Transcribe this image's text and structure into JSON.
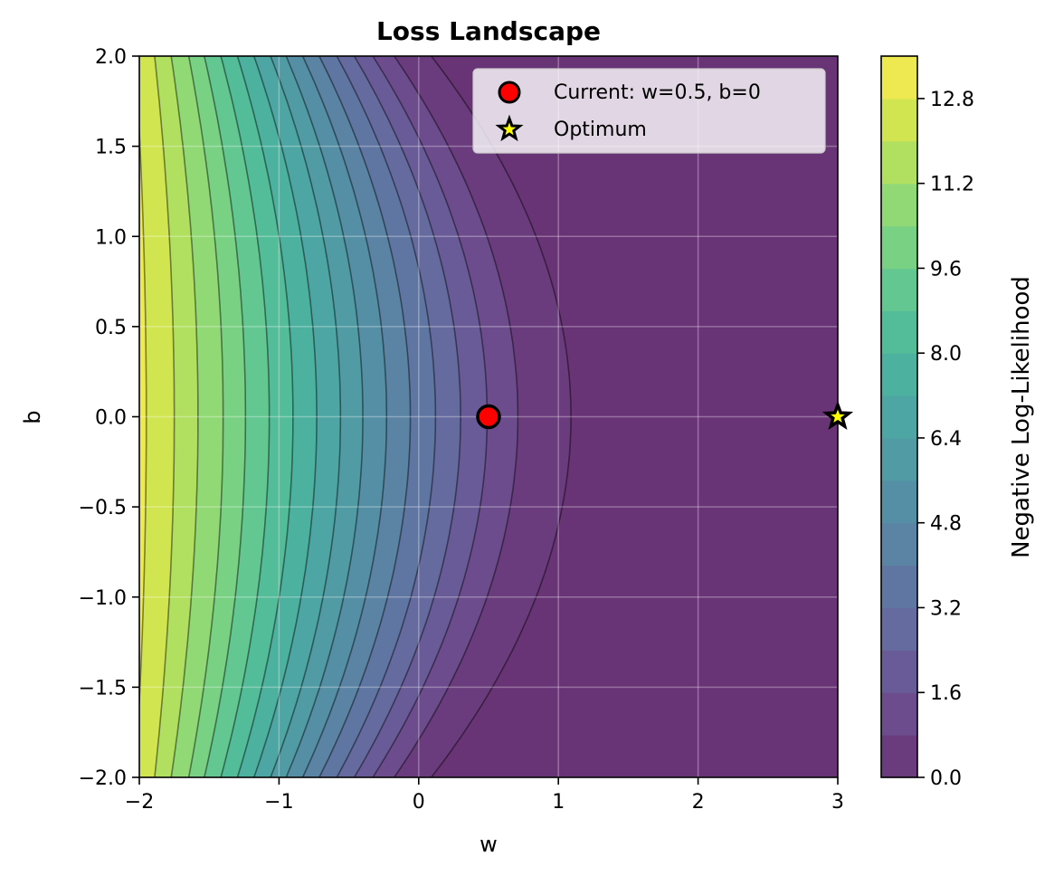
{
  "chart_data": {
    "type": "contour",
    "title": "Loss Landscape",
    "xlabel": "w",
    "ylabel": "b",
    "xlim": [
      -2,
      3
    ],
    "ylim": [
      -2,
      2
    ],
    "x_ticks": [
      -2,
      -1,
      0,
      1,
      2,
      3
    ],
    "x_tick_labels": [
      "−2",
      "−1",
      "0",
      "1",
      "2",
      "3"
    ],
    "y_ticks": [
      -2.0,
      -1.5,
      -1.0,
      -0.5,
      0.0,
      0.5,
      1.0,
      1.5,
      2.0
    ],
    "y_tick_labels": [
      "−2.0",
      "−1.5",
      "−1.0",
      "−0.5",
      "0.0",
      "0.5",
      "1.0",
      "1.5",
      "2.0"
    ],
    "grid": true,
    "colormap": "viridis",
    "colorbar": {
      "label": "Negative Log-Likelihood",
      "range": [
        0.0,
        13.6
      ],
      "level_step": 0.8,
      "ticks": [
        0.0,
        1.6,
        3.2,
        4.8,
        6.4,
        8.0,
        9.6,
        11.2,
        12.8
      ],
      "tick_labels": [
        "0.0",
        "1.6",
        "3.2",
        "4.8",
        "6.4",
        "8.0",
        "9.6",
        "11.2",
        "12.8"
      ]
    },
    "contour_w_intercepts_at_b0": [
      -1.95,
      -1.75,
      -1.58,
      -1.4,
      -1.24,
      -1.07,
      -0.9,
      -0.73,
      -0.56,
      -0.4,
      -0.23,
      -0.06,
      0.12,
      0.3,
      0.49,
      0.71,
      1.09
    ],
    "markers": [
      {
        "label": "Current: w=0.5, b=0",
        "w": 0.5,
        "b": 0.0,
        "marker": "circle",
        "color": "#ff0000",
        "edge_color": "#000000"
      },
      {
        "label": "Optimum",
        "w": 3.0,
        "b": 0.0,
        "marker": "star",
        "color": "#ffff00",
        "edge_color": "#000000"
      }
    ],
    "legend": {
      "position": "top-right",
      "entries": [
        "Current: w=0.5, b=0",
        "Optimum"
      ]
    }
  }
}
